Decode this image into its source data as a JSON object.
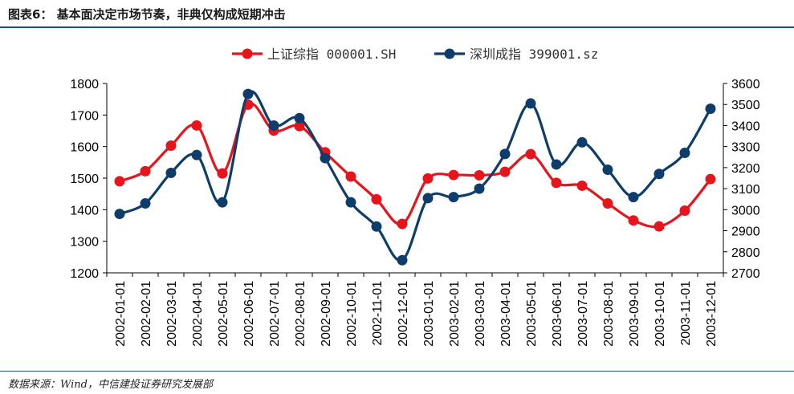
{
  "header": {
    "title": "图表6：   基本面决定市场节奏，非典仅构成短期冲击"
  },
  "footer": {
    "source": "数据来源：Wind，中信建投证券研究发展部"
  },
  "chart_data": {
    "type": "line",
    "categories": [
      "2002-01-01",
      "2002-02-01",
      "2002-03-01",
      "2002-04-01",
      "2002-05-01",
      "2002-06-01",
      "2002-07-01",
      "2002-08-01",
      "2002-09-01",
      "2002-10-01",
      "2002-11-01",
      "2002-12-01",
      "2003-01-01",
      "2003-02-01",
      "2003-03-01",
      "2003-04-01",
      "2003-05-01",
      "2003-06-01",
      "2003-07-01",
      "2003-08-01",
      "2003-09-01",
      "2003-10-01",
      "2003-11-01",
      "2003-12-01"
    ],
    "series": [
      {
        "name": "上证综指 000001.SH",
        "color": "#e8141c",
        "axis": "left",
        "values": [
          1490,
          1522,
          1603,
          1667,
          1515,
          1733,
          1651,
          1665,
          1582,
          1505,
          1433,
          1355,
          1499,
          1510,
          1509,
          1520,
          1576,
          1485,
          1476,
          1420,
          1366,
          1347,
          1397,
          1497
        ]
      },
      {
        "name": "深圳成指 399001.sz",
        "color": "#0e3d6b",
        "axis": "right",
        "values": [
          2980,
          3030,
          3175,
          3260,
          3035,
          3550,
          3400,
          3435,
          3245,
          3035,
          2920,
          2760,
          3055,
          3060,
          3100,
          3265,
          3505,
          3215,
          3320,
          3190,
          3060,
          3170,
          3270,
          3480
        ]
      }
    ],
    "y_left": {
      "min": 1200,
      "max": 1800,
      "ticks": [
        "1200",
        "1300",
        "1400",
        "1500",
        "1600",
        "1700",
        "1800"
      ]
    },
    "y_right": {
      "min": 2700,
      "max": 3600,
      "ticks": [
        "2700",
        "2800",
        "2900",
        "3000",
        "3100",
        "3200",
        "3300",
        "3400",
        "3500",
        "3600"
      ]
    },
    "legend_position": "top-center",
    "grid": false
  }
}
